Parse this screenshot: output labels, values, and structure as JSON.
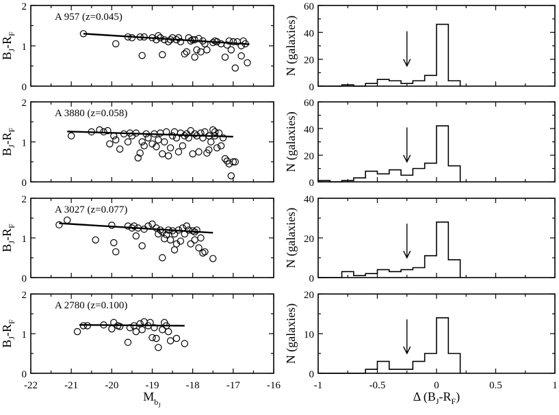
{
  "colors": {
    "ink": "#000000",
    "background": "#ffffff"
  },
  "axes_text": {
    "left_ylabel_main": "B",
    "left_ylabel_sub1": "J",
    "left_ylabel_mid": "-R",
    "left_ylabel_sub2": "F",
    "left_xlabel_main": "M",
    "left_xlabel_sub": "b",
    "left_xlabel_subsub": "J",
    "right_ylabel": "N (galaxies)",
    "right_xlabel_main": "Δ (B",
    "right_xlabel_sub1": "J",
    "right_xlabel_mid": "-R",
    "right_xlabel_sub2": "F",
    "right_xlabel_end": ")"
  },
  "chart_data": [
    {
      "type": "scatter",
      "panel": "left-1",
      "title": "A 957 (z=0.045)",
      "xlabel": "M_bJ",
      "ylabel": "B_J-R_F",
      "xlim": [
        -22,
        -16
      ],
      "ylim": [
        0,
        2
      ],
      "yticks": [
        "0",
        "1",
        "2"
      ],
      "fit": {
        "x": [
          -20.7,
          -16.6
        ],
        "y": [
          1.3,
          1.04
        ]
      },
      "points": [
        [
          -20.7,
          1.3
        ],
        [
          -19.9,
          1.05
        ],
        [
          -19.6,
          1.22
        ],
        [
          -19.3,
          1.22
        ],
        [
          -19.2,
          1.22
        ],
        [
          -19.25,
          0.76
        ],
        [
          -19.0,
          1.2
        ],
        [
          -18.9,
          1.15
        ],
        [
          -18.85,
          1.25
        ],
        [
          -18.8,
          1.2
        ],
        [
          -18.75,
          0.78
        ],
        [
          -18.7,
          1.15
        ],
        [
          -18.6,
          1.1
        ],
        [
          -18.5,
          1.2
        ],
        [
          -18.4,
          1.15
        ],
        [
          -18.35,
          1.2
        ],
        [
          -18.3,
          1.1
        ],
        [
          -18.2,
          0.8
        ],
        [
          -18.15,
          0.85
        ],
        [
          -18.1,
          1.2
        ],
        [
          -18.05,
          1.12
        ],
        [
          -18.0,
          1.15
        ],
        [
          -17.95,
          0.72
        ],
        [
          -17.9,
          0.9
        ],
        [
          -17.85,
          1.18
        ],
        [
          -17.8,
          0.85
        ],
        [
          -17.75,
          1.12
        ],
        [
          -17.7,
          1.05
        ],
        [
          -17.65,
          0.9
        ],
        [
          -17.5,
          1.08
        ],
        [
          -17.45,
          1.12
        ],
        [
          -17.4,
          1.1
        ],
        [
          -17.3,
          1.05
        ],
        [
          -17.2,
          0.72
        ],
        [
          -17.15,
          1.02
        ],
        [
          -17.1,
          1.12
        ],
        [
          -17.05,
          0.9
        ],
        [
          -17.0,
          1.1
        ],
        [
          -16.95,
          0.45
        ],
        [
          -16.9,
          1.1
        ],
        [
          -16.8,
          0.75
        ],
        [
          -16.75,
          1.12
        ],
        [
          -16.7,
          1.05
        ],
        [
          -16.65,
          0.58
        ],
        [
          -16.8,
          1.0
        ],
        [
          -17.95,
          1.15
        ],
        [
          -18.55,
          1.15
        ],
        [
          -19.5,
          1.2
        ]
      ]
    },
    {
      "type": "bar",
      "panel": "right-1",
      "xlabel": "Δ (B_J-R_F)",
      "ylabel": "N (galaxies)",
      "xlim": [
        -1,
        1
      ],
      "ylim": [
        0,
        60
      ],
      "yticks": [
        "0",
        "20",
        "40",
        "60"
      ],
      "bin_edges": [
        -1.0,
        -0.9,
        -0.8,
        -0.7,
        -0.6,
        -0.5,
        -0.4,
        -0.3,
        -0.2,
        -0.1,
        0.0,
        0.1,
        0.2
      ],
      "counts": [
        0,
        0,
        1,
        0,
        2,
        5,
        4,
        2,
        4,
        8,
        46,
        4
      ],
      "arrow_at": -0.25
    },
    {
      "type": "scatter",
      "panel": "left-2",
      "title": "A 3880 (z=0.058)",
      "xlabel": "M_bJ",
      "ylabel": "B_J-R_F",
      "xlim": [
        -22,
        -16
      ],
      "ylim": [
        0,
        2
      ],
      "yticks": [
        "0",
        "1",
        "2"
      ],
      "fit": {
        "x": [
          -21.1,
          -17.0
        ],
        "y": [
          1.26,
          1.13
        ]
      },
      "points": [
        [
          -21.0,
          1.15
        ],
        [
          -20.5,
          1.25
        ],
        [
          -20.3,
          1.3
        ],
        [
          -20.2,
          1.25
        ],
        [
          -20.05,
          0.95
        ],
        [
          -19.95,
          1.15
        ],
        [
          -19.9,
          1.05
        ],
        [
          -19.8,
          0.82
        ],
        [
          -19.6,
          1.0
        ],
        [
          -19.55,
          1.22
        ],
        [
          -19.5,
          1.15
        ],
        [
          -19.4,
          1.22
        ],
        [
          -19.35,
          0.6
        ],
        [
          -19.3,
          0.72
        ],
        [
          -19.25,
          1.0
        ],
        [
          -19.2,
          0.9
        ],
        [
          -19.15,
          1.2
        ],
        [
          -19.1,
          1.1
        ],
        [
          -19.0,
          0.95
        ],
        [
          -18.95,
          1.2
        ],
        [
          -18.9,
          0.88
        ],
        [
          -18.85,
          1.05
        ],
        [
          -18.8,
          1.22
        ],
        [
          -18.75,
          0.7
        ],
        [
          -18.7,
          1.0
        ],
        [
          -18.6,
          0.65
        ],
        [
          -18.55,
          0.85
        ],
        [
          -18.5,
          1.15
        ],
        [
          -18.45,
          1.25
        ],
        [
          -18.4,
          1.1
        ],
        [
          -18.35,
          0.75
        ],
        [
          -18.3,
          1.22
        ],
        [
          -18.25,
          0.9
        ],
        [
          -18.2,
          1.15
        ],
        [
          -18.15,
          1.2
        ],
        [
          -18.1,
          1.1
        ],
        [
          -18.05,
          1.28
        ],
        [
          -18.0,
          0.7
        ],
        [
          -17.95,
          1.2
        ],
        [
          -17.9,
          1.15
        ],
        [
          -17.85,
          0.75
        ],
        [
          -17.8,
          1.22
        ],
        [
          -17.75,
          1.1
        ],
        [
          -17.7,
          1.25
        ],
        [
          -17.65,
          0.72
        ],
        [
          -17.6,
          1.15
        ],
        [
          -17.55,
          1.0
        ],
        [
          -17.5,
          1.3
        ],
        [
          -17.45,
          1.15
        ],
        [
          -17.4,
          0.85
        ],
        [
          -17.35,
          1.22
        ],
        [
          -17.3,
          0.9
        ],
        [
          -17.25,
          1.1
        ],
        [
          -17.2,
          0.58
        ],
        [
          -17.15,
          0.52
        ],
        [
          -17.1,
          0.45
        ],
        [
          -17.05,
          0.15
        ],
        [
          -17.0,
          0.5
        ],
        [
          -16.95,
          0.5
        ],
        [
          -17.6,
          0.8
        ],
        [
          -18.65,
          1.25
        ],
        [
          -19.7,
          1.2
        ],
        [
          -20.1,
          1.28
        ],
        [
          -17.45,
          1.25
        ]
      ]
    },
    {
      "type": "bar",
      "panel": "right-2",
      "xlabel": "Δ (B_J-R_F)",
      "ylabel": "N (galaxies)",
      "xlim": [
        -1,
        1
      ],
      "ylim": [
        0,
        60
      ],
      "yticks": [
        "0",
        "20",
        "40",
        "60"
      ],
      "bin_edges": [
        -1.0,
        -0.9,
        -0.8,
        -0.7,
        -0.6,
        -0.5,
        -0.4,
        -0.3,
        -0.2,
        -0.1,
        0.0,
        0.1,
        0.2
      ],
      "counts": [
        1,
        0,
        1,
        3,
        8,
        6,
        9,
        5,
        10,
        14,
        42,
        12
      ],
      "arrow_at": -0.25
    },
    {
      "type": "scatter",
      "panel": "left-3",
      "title": "A 3027 (z=0.077)",
      "xlabel": "M_bJ",
      "ylabel": "B_J-R_F",
      "xlim": [
        -22,
        -16
      ],
      "ylim": [
        0,
        2
      ],
      "yticks": [
        "0",
        "1",
        "2"
      ],
      "fit": {
        "x": [
          -21.3,
          -17.5
        ],
        "y": [
          1.37,
          1.13
        ]
      },
      "points": [
        [
          -21.3,
          1.33
        ],
        [
          -21.1,
          1.45
        ],
        [
          -20.4,
          0.95
        ],
        [
          -20.0,
          1.32
        ],
        [
          -19.95,
          0.88
        ],
        [
          -19.9,
          0.65
        ],
        [
          -19.6,
          1.3
        ],
        [
          -19.5,
          1.25
        ],
        [
          -19.4,
          1.05
        ],
        [
          -19.35,
          1.25
        ],
        [
          -19.25,
          0.8
        ],
        [
          -19.2,
          1.22
        ],
        [
          -19.1,
          1.3
        ],
        [
          -19.0,
          1.35
        ],
        [
          -18.9,
          1.25
        ],
        [
          -18.85,
          1.1
        ],
        [
          -18.8,
          1.2
        ],
        [
          -18.75,
          1.15
        ],
        [
          -18.7,
          0.98
        ],
        [
          -18.65,
          1.08
        ],
        [
          -18.6,
          1.2
        ],
        [
          -18.55,
          0.95
        ],
        [
          -18.5,
          1.18
        ],
        [
          -18.45,
          1.1
        ],
        [
          -18.4,
          0.85
        ],
        [
          -18.35,
          1.2
        ],
        [
          -18.3,
          0.92
        ],
        [
          -18.25,
          1.25
        ],
        [
          -18.2,
          1.1
        ],
        [
          -18.15,
          1.3
        ],
        [
          -18.1,
          1.2
        ],
        [
          -18.05,
          0.85
        ],
        [
          -18.0,
          1.18
        ],
        [
          -17.95,
          0.95
        ],
        [
          -17.9,
          1.2
        ],
        [
          -17.85,
          0.75
        ],
        [
          -17.8,
          1.0
        ],
        [
          -17.75,
          0.62
        ],
        [
          -17.7,
          0.65
        ],
        [
          -17.5,
          0.48
        ],
        [
          -18.75,
          0.5
        ],
        [
          -18.45,
          0.7
        ],
        [
          -17.95,
          1.15
        ],
        [
          -19.45,
          1.3
        ]
      ]
    },
    {
      "type": "bar",
      "panel": "right-3",
      "xlabel": "Δ (B_J-R_F)",
      "ylabel": "N (galaxies)",
      "xlim": [
        -1,
        1
      ],
      "ylim": [
        0,
        40
      ],
      "yticks": [
        "0",
        "20",
        "40"
      ],
      "bin_edges": [
        -1.0,
        -0.9,
        -0.8,
        -0.7,
        -0.6,
        -0.5,
        -0.4,
        -0.3,
        -0.2,
        -0.1,
        0.0,
        0.1,
        0.2
      ],
      "counts": [
        0,
        0,
        3,
        1,
        2,
        4,
        3,
        4,
        5,
        11,
        28,
        9
      ],
      "arrow_at": -0.25
    },
    {
      "type": "scatter",
      "panel": "left-4",
      "title": "A 2780 (z=0.100)",
      "xlabel": "M_bJ",
      "ylabel": "B_J-R_F",
      "xlim": [
        -22,
        -16
      ],
      "ylim": [
        0,
        2
      ],
      "yticks": [
        "0",
        "1",
        "2"
      ],
      "fit": {
        "x": [
          -20.8,
          -18.2
        ],
        "y": [
          1.22,
          1.2
        ]
      },
      "points": [
        [
          -20.85,
          1.05
        ],
        [
          -20.7,
          1.2
        ],
        [
          -20.6,
          1.2
        ],
        [
          -20.2,
          1.22
        ],
        [
          -20.0,
          1.12
        ],
        [
          -19.95,
          1.28
        ],
        [
          -19.85,
          1.2
        ],
        [
          -19.8,
          1.18
        ],
        [
          -19.6,
          0.78
        ],
        [
          -19.45,
          1.2
        ],
        [
          -19.4,
          1.05
        ],
        [
          -19.3,
          1.25
        ],
        [
          -19.25,
          1.1
        ],
        [
          -19.2,
          1.3
        ],
        [
          -19.1,
          1.2
        ],
        [
          -19.05,
          1.28
        ],
        [
          -19.0,
          0.9
        ],
        [
          -18.95,
          1.15
        ],
        [
          -18.9,
          0.88
        ],
        [
          -18.85,
          0.65
        ],
        [
          -18.75,
          1.1
        ],
        [
          -18.7,
          1.28
        ],
        [
          -18.65,
          1.2
        ],
        [
          -18.6,
          1.05
        ],
        [
          -18.55,
          0.82
        ],
        [
          -18.4,
          0.88
        ],
        [
          -18.2,
          0.75
        ],
        [
          -19.55,
          1.15
        ]
      ]
    },
    {
      "type": "bar",
      "panel": "right-4",
      "xlabel": "Δ (B_J-R_F)",
      "ylabel": "N (galaxies)",
      "xlim": [
        -1,
        1
      ],
      "ylim": [
        0,
        20
      ],
      "yticks": [
        "0",
        "10",
        "20"
      ],
      "xticks": [
        "-1",
        "-0.5",
        "0",
        "0.5",
        "1"
      ],
      "bin_edges": [
        -1.0,
        -0.9,
        -0.8,
        -0.7,
        -0.6,
        -0.5,
        -0.4,
        -0.3,
        -0.2,
        -0.1,
        0.0,
        0.1,
        0.2
      ],
      "counts": [
        0,
        0,
        0,
        0,
        1,
        3,
        1,
        1,
        3,
        5,
        14,
        5
      ],
      "arrow_at": -0.25
    }
  ],
  "left_xticks": [
    "-22",
    "-21",
    "-20",
    "-19",
    "-18",
    "-17",
    "-16"
  ]
}
